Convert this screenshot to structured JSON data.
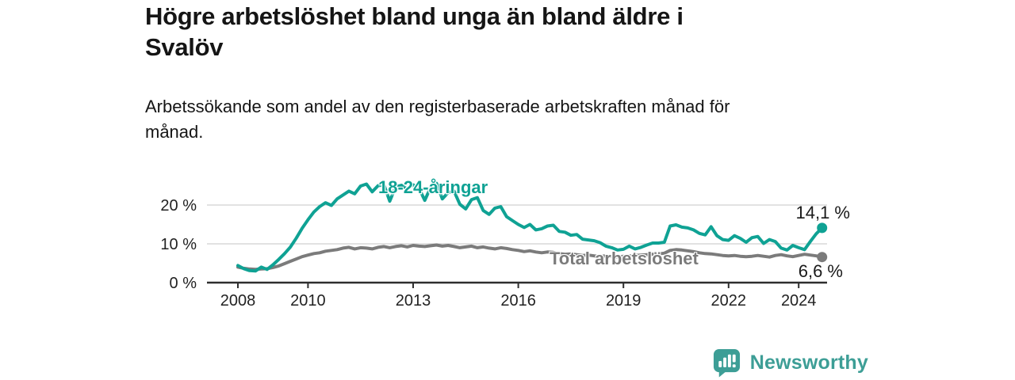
{
  "header": {
    "title": "Högre arbetslöshet bland unga än bland äldre i\nSvalöv",
    "subtitle": "Arbetssökande som andel av den registerbaserade arbetskraften månad för\nmånad."
  },
  "chart_data": {
    "type": "line",
    "x_unit": "year (monthly resolution, one value per 2 months)",
    "x_start": 2008.0,
    "x_step_months": 2,
    "x_ticks": [
      2008,
      2010,
      2013,
      2016,
      2019,
      2022,
      2024
    ],
    "y_ticks": [
      {
        "value": 0,
        "label": "0 %"
      },
      {
        "value": 10,
        "label": "10 %"
      },
      {
        "value": 20,
        "label": "20 %"
      }
    ],
    "ylim": [
      0,
      27
    ],
    "grid": "horizontal",
    "legend_position": "inline-labels",
    "series": [
      {
        "name": "18-24-åringar",
        "color": "#0FA294",
        "values": [
          4.4,
          3.6,
          3.1,
          3.0,
          4.0,
          3.4,
          4.6,
          6.0,
          7.5,
          9.2,
          11.5,
          14.0,
          16.2,
          18.2,
          19.6,
          20.6,
          19.9,
          21.6,
          22.6,
          23.6,
          22.9,
          24.9,
          25.4,
          23.4,
          25.0,
          25.2,
          21.0,
          24.7,
          25.1,
          24.1,
          25.2,
          24.3,
          21.2,
          24.6,
          25.6,
          21.6,
          23.2,
          23.6,
          20.2,
          19.0,
          21.4,
          21.9,
          18.6,
          17.6,
          19.2,
          19.6,
          17.0,
          16.0,
          15.0,
          14.2,
          15.0,
          13.6,
          13.9,
          14.6,
          14.8,
          13.2,
          13.0,
          12.2,
          12.4,
          11.2,
          11.0,
          10.8,
          10.3,
          9.4,
          9.0,
          8.4,
          8.6,
          9.4,
          8.7,
          9.1,
          9.7,
          10.2,
          10.2,
          10.4,
          14.6,
          14.9,
          14.3,
          14.1,
          13.6,
          12.7,
          12.3,
          14.4,
          12.1,
          11.1,
          10.9,
          12.1,
          11.4,
          10.4,
          11.6,
          11.9,
          10.1,
          11.1,
          10.6,
          8.9,
          8.4,
          9.6,
          9.0,
          8.5,
          10.6,
          12.6,
          14.1
        ]
      },
      {
        "name": "Total arbetslöshet",
        "color": "#7B7B7B",
        "values": [
          4.0,
          3.7,
          3.5,
          3.4,
          3.5,
          3.6,
          3.9,
          4.3,
          4.9,
          5.5,
          6.1,
          6.7,
          7.1,
          7.5,
          7.7,
          8.1,
          8.3,
          8.5,
          8.9,
          9.1,
          8.7,
          9.0,
          8.9,
          8.7,
          9.1,
          9.3,
          9.0,
          9.3,
          9.5,
          9.2,
          9.6,
          9.4,
          9.3,
          9.5,
          9.7,
          9.4,
          9.6,
          9.3,
          9.0,
          9.2,
          9.4,
          9.0,
          9.2,
          8.9,
          8.7,
          9.0,
          8.8,
          8.5,
          8.3,
          8.0,
          8.2,
          7.9,
          7.7,
          7.9,
          7.8,
          7.5,
          7.3,
          7.4,
          7.2,
          7.0,
          7.1,
          6.9,
          6.8,
          6.9,
          6.7,
          6.6,
          6.8,
          6.9,
          7.0,
          7.1,
          7.2,
          7.3,
          7.4,
          7.6,
          8.3,
          8.5,
          8.4,
          8.2,
          8.0,
          7.7,
          7.5,
          7.4,
          7.2,
          7.0,
          6.9,
          7.0,
          6.8,
          6.7,
          6.8,
          7.0,
          6.8,
          6.6,
          7.0,
          7.2,
          6.9,
          6.7,
          7.0,
          7.3,
          7.1,
          6.9,
          6.6
        ]
      }
    ],
    "annotations": {
      "youth_end": "14,1 %",
      "total_end": "6,6 %"
    },
    "axis_color": "#2E2E2E",
    "gridline_color": "#D9D9D9",
    "tick_label_color": "#222222"
  },
  "footer": {
    "brand": "Newsworthy",
    "brand_color": "#3D9E96"
  }
}
